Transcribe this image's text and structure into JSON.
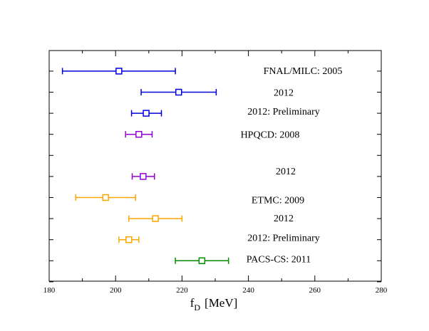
{
  "chart_data": {
    "type": "scatter",
    "subtype": "forest-plot-errorbars",
    "title": "",
    "xlabel": "f_D  [MeV]",
    "xlabel_main": "f",
    "xlabel_sub": "D",
    "xlabel_unit": "[MeV]",
    "ylabel": "",
    "xlim": [
      180,
      280
    ],
    "xticks": [
      180,
      200,
      220,
      240,
      260,
      280
    ],
    "grid": false,
    "rows": 11,
    "entries": [
      {
        "label": "FNAL/MILC: 2005",
        "row": 1,
        "value": 201.0,
        "low": 184.0,
        "high": 218.0,
        "color": "#0000dd"
      },
      {
        "label": "2012",
        "row": 2,
        "value": 219.0,
        "low": 207.7,
        "high": 230.3,
        "color": "#0000dd"
      },
      {
        "label": "2012: Preliminary",
        "row": 3,
        "value": 209.2,
        "low": 204.8,
        "high": 213.8,
        "color": "#0000dd"
      },
      {
        "label": "HPQCD: 2008",
        "row": 4,
        "value": 207.0,
        "low": 203.0,
        "high": 211.0,
        "color": "#9400d3"
      },
      {
        "label": "2012",
        "row": 6,
        "value": 208.3,
        "low": 205.0,
        "high": 211.7,
        "color": "#9400d3"
      },
      {
        "label": "ETMC: 2009",
        "row": 7,
        "value": 197.0,
        "low": 188.0,
        "high": 206.0,
        "color": "#ffa500"
      },
      {
        "label": "2012",
        "row": 8,
        "value": 212.0,
        "low": 204.0,
        "high": 220.0,
        "color": "#ffa500"
      },
      {
        "label": "2012: Preliminary",
        "row": 9,
        "value": 204.0,
        "low": 201.0,
        "high": 207.0,
        "color": "#ffa500"
      },
      {
        "label": "PACS-CS: 2011",
        "row": 10,
        "value": 226.0,
        "low": 218.0,
        "high": 234.0,
        "color": "#008b00"
      }
    ]
  }
}
